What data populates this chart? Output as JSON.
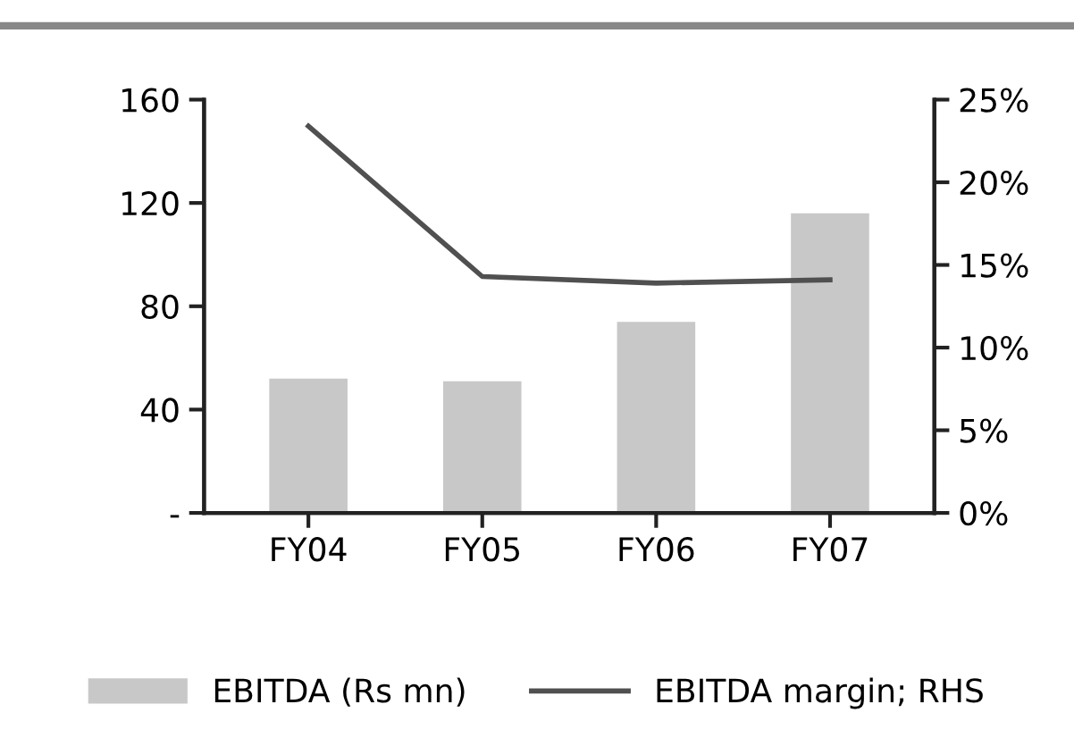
{
  "chart_data": {
    "type": "bar",
    "categories": [
      "FY04",
      "FY05",
      "FY06",
      "FY07"
    ],
    "series": [
      {
        "name": "EBITDA (Rs mn)",
        "color": "#c8c8c8",
        "values": [
          52,
          51,
          74,
          116
        ]
      },
      {
        "name": "EBITDA margin; RHS",
        "type": "line",
        "axis": "y2",
        "color": "#505050",
        "values": [
          23.4,
          14.3,
          13.9,
          14.1
        ]
      }
    ],
    "ylim": [
      0,
      160
    ],
    "yticks": [
      {
        "value": 0,
        "label": "-"
      },
      40,
      80,
      120,
      160
    ],
    "y2lim": [
      0,
      25
    ],
    "y2ticks": [
      {
        "value": 0,
        "label": "0%"
      },
      {
        "value": 5,
        "label": "5%"
      },
      {
        "value": 10,
        "label": "10%"
      },
      {
        "value": 15,
        "label": "15%"
      },
      {
        "value": 20,
        "label": "20%"
      },
      {
        "value": 25,
        "label": "25%"
      }
    ],
    "grid": false,
    "legend": "bottom",
    "marker": "none",
    "line_style": "solid"
  }
}
